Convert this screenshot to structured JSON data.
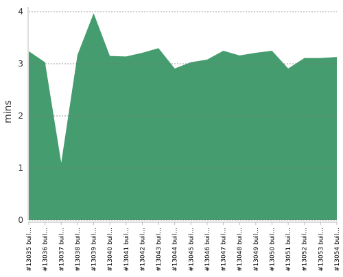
{
  "chart_data": {
    "type": "area",
    "y_label": "mins",
    "categories": [
      "#13035 buil...",
      "#13036 buil...",
      "#13037 buil...",
      "#13038 buil...",
      "#13039 buil...",
      "#13040 buil...",
      "#13041 buil...",
      "#13042 buil...",
      "#13043 buil...",
      "#13044 buil...",
      "#13045 buil...",
      "#13046 buil...",
      "#13047 buil...",
      "#13048 buil...",
      "#13049 buil...",
      "#13050 buil...",
      "#13051 buil...",
      "#13052 buil...",
      "#13053 buil...",
      "#13054 buil..."
    ],
    "values": [
      3.24,
      3.03,
      1.1,
      3.17,
      3.97,
      3.15,
      3.14,
      3.21,
      3.3,
      2.91,
      3.03,
      3.08,
      3.25,
      3.16,
      3.21,
      3.25,
      2.91,
      3.11,
      3.11,
      3.13
    ],
    "color": "#459c6e",
    "ylim": [
      0,
      4
    ],
    "yticks": [
      0,
      1,
      2,
      3,
      4
    ],
    "grid": true
  }
}
